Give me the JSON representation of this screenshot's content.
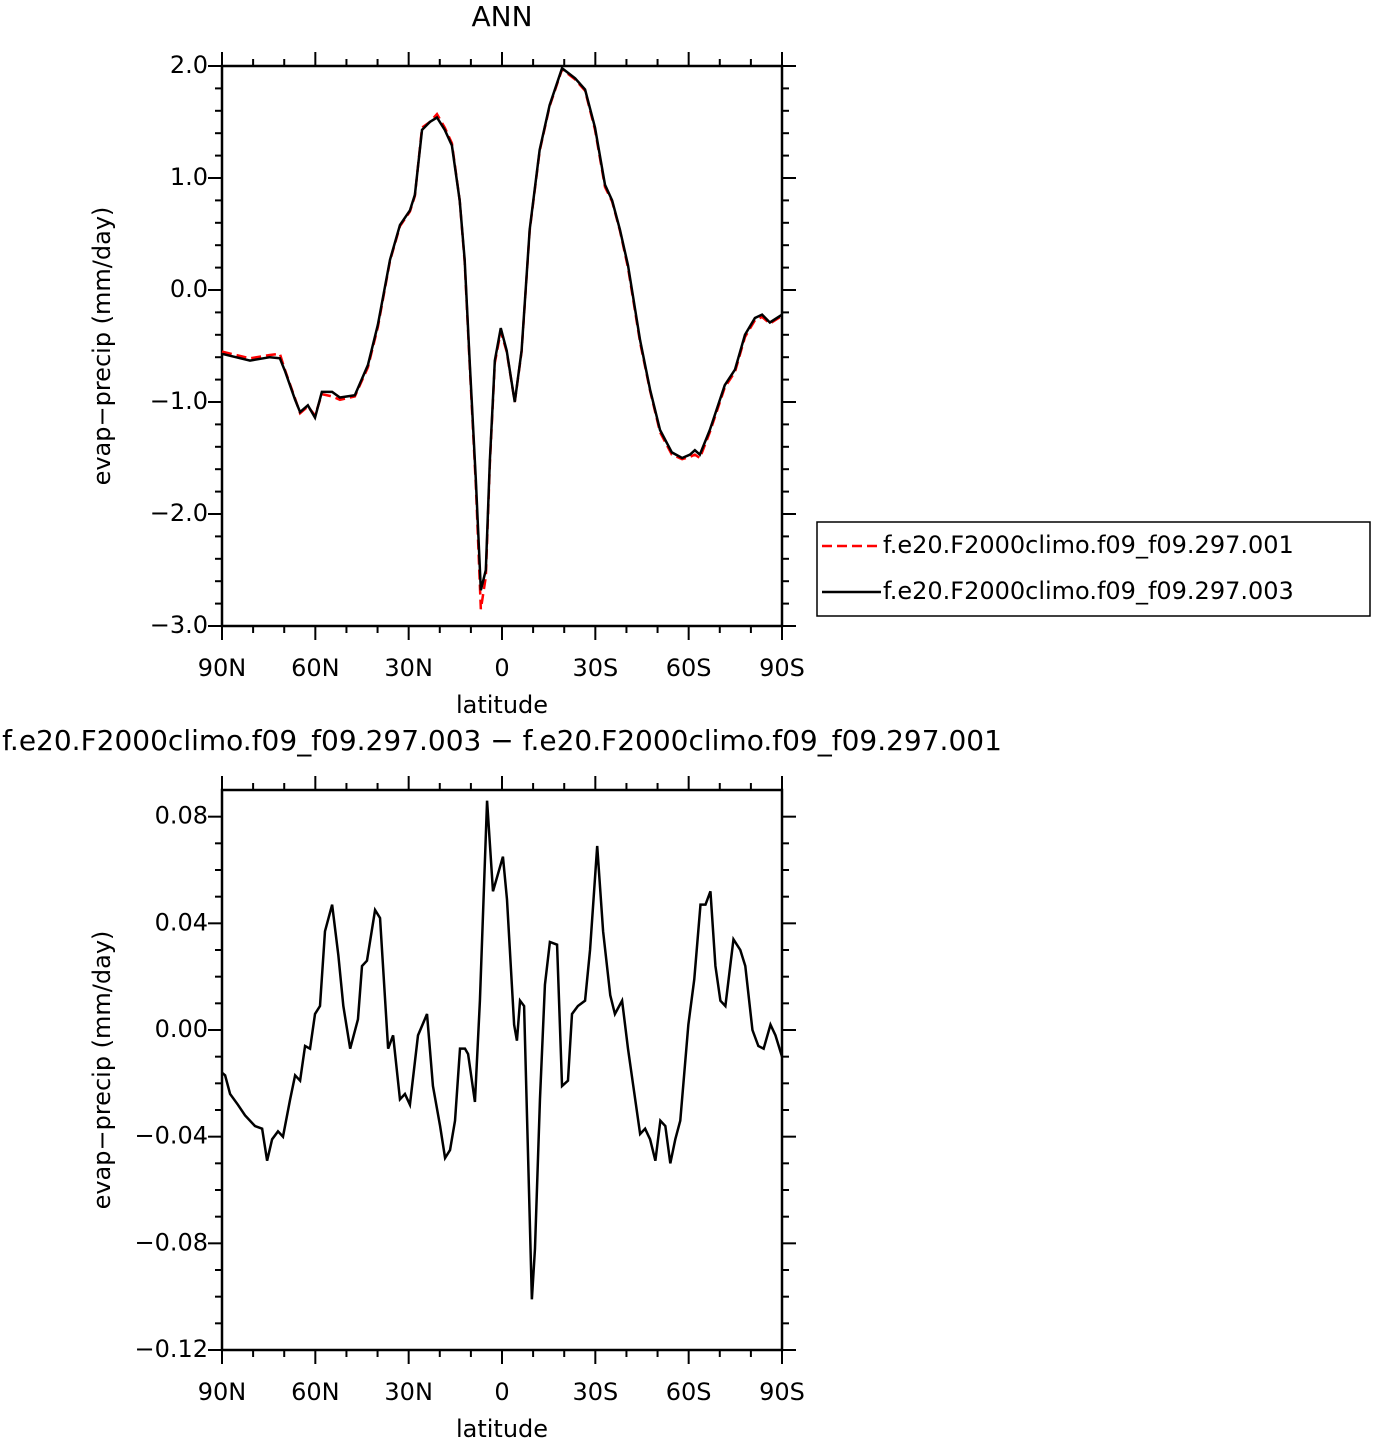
{
  "chart_data": [
    {
      "type": "line",
      "title": "ANN",
      "xlabel": "latitude",
      "ylabel": "evap−precip (mm/day)",
      "x": [
        90,
        81,
        74.6,
        71.4,
        69.8,
        66.5,
        64.9,
        62.4,
        60.1,
        57.9,
        54.6,
        52.1,
        47.3,
        43.1,
        39.9,
        36,
        32.8,
        29.6,
        28,
        25.7,
        23.2,
        20.9,
        18.4,
        16.1,
        13.6,
        12,
        10.4,
        8.4,
        6.8,
        5.2,
        3.9,
        2.3,
        0.4,
        -1.5,
        -4.1,
        -6.3,
        -8.9,
        -12.1,
        -15.3,
        -19.3,
        -23.5,
        -26.7,
        -29.9,
        -33.1,
        -35.4,
        -37.9,
        -40.5,
        -44.4,
        -47.6,
        -50.8,
        -54.6,
        -57.9,
        -60.4,
        -62,
        -63.6,
        -66.8,
        -71.6,
        -74.9,
        -78.1,
        -81.3,
        -83.6,
        -86.1,
        -90
      ],
      "series": [
        {
          "name": "f.e20.F2000climo.f09_f09.297.001",
          "color": "#ff0000",
          "line_style": "dashed",
          "values": [
            -0.55,
            -0.61,
            -0.58,
            -0.57,
            -0.71,
            -0.97,
            -1.1,
            -1.04,
            -1.12,
            -0.93,
            -0.95,
            -0.98,
            -0.95,
            -0.69,
            -0.33,
            0.26,
            0.57,
            0.7,
            0.84,
            1.45,
            1.5,
            1.57,
            1.45,
            1.31,
            0.8,
            0.25,
            -0.66,
            -1.75,
            -2.85,
            -2.56,
            -1.55,
            -0.65,
            -0.37,
            -0.55,
            -1.0,
            -0.55,
            0.53,
            1.24,
            1.64,
            1.97,
            1.88,
            1.78,
            1.43,
            0.92,
            0.79,
            0.53,
            0.2,
            -0.47,
            -0.9,
            -1.27,
            -1.47,
            -1.51,
            -1.49,
            -1.47,
            -1.5,
            -1.27,
            -0.87,
            -0.73,
            -0.42,
            -0.27,
            -0.24,
            -0.3,
            -0.23
          ]
        },
        {
          "name": "f.e20.F2000climo.f09_f09.297.003",
          "color": "#000000",
          "line_style": "solid",
          "values": [
            -0.57,
            -0.63,
            -0.6,
            -0.61,
            -0.72,
            -0.98,
            -1.09,
            -1.03,
            -1.14,
            -0.91,
            -0.91,
            -0.96,
            -0.94,
            -0.67,
            -0.31,
            0.27,
            0.58,
            0.71,
            0.85,
            1.43,
            1.5,
            1.54,
            1.43,
            1.29,
            0.8,
            0.27,
            -0.63,
            -1.7,
            -2.68,
            -2.5,
            -1.52,
            -0.63,
            -0.34,
            -0.54,
            -1.0,
            -0.54,
            0.54,
            1.25,
            1.65,
            1.98,
            1.89,
            1.79,
            1.45,
            0.94,
            0.8,
            0.54,
            0.22,
            -0.45,
            -0.89,
            -1.25,
            -1.45,
            -1.5,
            -1.47,
            -1.43,
            -1.47,
            -1.25,
            -0.85,
            -0.71,
            -0.4,
            -0.25,
            -0.22,
            -0.29,
            -0.22
          ]
        }
      ],
      "xlim": [
        90,
        -90
      ],
      "xticks": [
        {
          "value": 90,
          "label": "90N"
        },
        {
          "value": 60,
          "label": "60N"
        },
        {
          "value": 30,
          "label": "30N"
        },
        0,
        {
          "value": -30,
          "label": "30S"
        },
        {
          "value": -60,
          "label": "60S"
        },
        {
          "value": -90,
          "label": "90S"
        }
      ],
      "ylim": [
        -3,
        2
      ],
      "yticks": [
        {
          "value": 2,
          "label": "2.0"
        },
        {
          "value": 1,
          "label": "1.0"
        },
        {
          "value": 0,
          "label": "0.0"
        },
        {
          "value": -1,
          "label": "−1.0"
        },
        {
          "value": -2,
          "label": "−2.0"
        },
        {
          "value": -3,
          "label": "−3.0"
        }
      ],
      "legend": "right"
    },
    {
      "type": "line",
      "title": "f.e20.F2000climo.f09_f09.297.003 − f.e20.F2000climo.f09_f09.297.001",
      "xlabel": "latitude",
      "ylabel": "evap−precip (mm/day)",
      "x": [
        90,
        89,
        87.4,
        84.9,
        82.6,
        79.4,
        77.1,
        75.5,
        73.9,
        72,
        70.4,
        68.1,
        66.5,
        64.9,
        63.3,
        61.7,
        60.1,
        58.5,
        56.9,
        54.6,
        52.6,
        51,
        48.8,
        46.3,
        45,
        43.4,
        40.8,
        39.2,
        36.6,
        35,
        32.8,
        31.2,
        29.6,
        27,
        24.1,
        22.2,
        19.9,
        18.3,
        16.7,
        15.1,
        13.5,
        11.9,
        10.9,
        8.7,
        7.1,
        4.8,
        2.9,
        -0.3,
        -1.6,
        -3.9,
        -4.8,
        -5.8,
        -7.1,
        -9.6,
        -10.6,
        -12.2,
        -13.8,
        -15.4,
        -17.7,
        -19.3,
        -21.2,
        -22.5,
        -24.4,
        -26.7,
        -28.3,
        -30.6,
        -32.5,
        -34.8,
        -36.3,
        -38.6,
        -40.5,
        -42.2,
        -44.4,
        -46,
        -47.6,
        -49.3,
        -50.9,
        -52.5,
        -54.1,
        -55.7,
        -57.3,
        -59.9,
        -61.8,
        -63.8,
        -65.4,
        -67,
        -68.6,
        -70.2,
        -71.8,
        -74.4,
        -76.6,
        -78.2,
        -80.5,
        -82.4,
        -84.1,
        -86.3,
        -87.9,
        -90
      ],
      "series": [
        {
          "color": "#000000",
          "line_style": "solid",
          "values": [
            -0.016,
            -0.017,
            -0.024,
            -0.028,
            -0.032,
            -0.036,
            -0.037,
            -0.049,
            -0.041,
            -0.038,
            -0.04,
            -0.026,
            -0.017,
            -0.019,
            -0.006,
            -0.007,
            0.006,
            0.009,
            0.037,
            0.047,
            0.028,
            0.009,
            -0.007,
            0.004,
            0.024,
            0.026,
            0.045,
            0.042,
            -0.007,
            -0.002,
            -0.026,
            -0.024,
            -0.028,
            -0.002,
            0.006,
            -0.021,
            -0.036,
            -0.048,
            -0.045,
            -0.034,
            -0.007,
            -0.007,
            -0.009,
            -0.027,
            0.011,
            0.086,
            0.052,
            0.065,
            0.049,
            0.002,
            -0.004,
            0.011,
            0.009,
            -0.101,
            -0.082,
            -0.026,
            0.017,
            0.033,
            0.032,
            -0.021,
            -0.019,
            0.006,
            0.009,
            0.011,
            0.03,
            0.069,
            0.037,
            0.013,
            0.006,
            0.011,
            -0.007,
            -0.021,
            -0.039,
            -0.037,
            -0.041,
            -0.049,
            -0.034,
            -0.036,
            -0.05,
            -0.041,
            -0.034,
            0.002,
            0.019,
            0.047,
            0.047,
            0.052,
            0.024,
            0.011,
            0.009,
            0.034,
            0.03,
            0.024,
            0,
            -0.006,
            -0.007,
            0.002,
            -0.002,
            -0.01
          ]
        }
      ],
      "xlim": [
        90,
        -90
      ],
      "xticks": [
        {
          "value": 90,
          "label": "90N"
        },
        {
          "value": 60,
          "label": "60N"
        },
        {
          "value": 30,
          "label": "30N"
        },
        0,
        {
          "value": -30,
          "label": "30S"
        },
        {
          "value": -60,
          "label": "60S"
        },
        {
          "value": -90,
          "label": "90S"
        }
      ],
      "ylim": [
        -0.12,
        0.09
      ],
      "yticks": [
        0.08,
        0.04,
        {
          "value": 0,
          "label": "0.00"
        },
        {
          "value": -0.04,
          "label": "−0.04"
        },
        {
          "value": -0.08,
          "label": "−0.08"
        },
        {
          "value": -0.12,
          "label": "−0.12"
        }
      ]
    }
  ]
}
